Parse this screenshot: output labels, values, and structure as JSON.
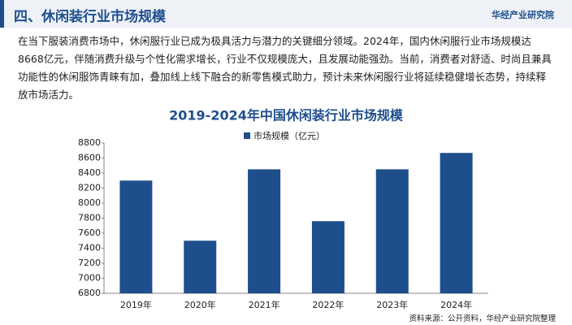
{
  "header": {
    "title": "四、休闲装行业市场规模",
    "brand": "华经产业研究院"
  },
  "paragraph": "在当下服装消费市场中，休闲服行业已成为极具活力与潜力的关键细分领域。2024年，国内休闲服行业市场规模达8668亿元，伴随消费升级与个性化需求增长，行业不仅规模庞大，且发展动能强劲。当前，消费者对舒适、时尚且兼具功能性的休闲服饰青睐有加，叠加线上线下融合的新零售模式助力，预计未来休闲服行业将延续稳健增长态势，持续释放市场活力。",
  "chart_data": {
    "type": "bar",
    "title": "2019-2024年中国休闲装行业市场规模",
    "categories": [
      "2019年",
      "2020年",
      "2021年",
      "2022年",
      "2023年",
      "2024年"
    ],
    "series": [
      {
        "name": "市场规模（亿元）",
        "color": "#1f4e8c",
        "values": [
          8300,
          7500,
          8450,
          7760,
          8450,
          8668
        ]
      }
    ],
    "ylim": [
      6800,
      8800
    ],
    "yticks": [
      6800,
      7000,
      7200,
      7400,
      7600,
      7800,
      8000,
      8200,
      8400,
      8600,
      8800
    ],
    "legend": "top"
  },
  "source": "资料来源：公开资料，华经产业研究院整理"
}
